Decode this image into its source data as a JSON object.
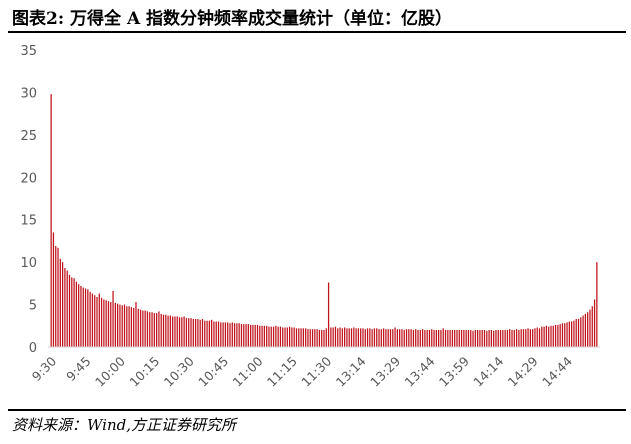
{
  "figure": {
    "title": "图表2:   万得全 A 指数分钟频率成交量统计（单位：亿股）",
    "source": "资料来源：Wind,方正证券研究所"
  },
  "colors": {
    "bar": "#c0121b",
    "axis": "#d0d0d0",
    "tick_text": "#595959"
  },
  "chart_data": {
    "type": "bar",
    "title": "",
    "xlabel": "",
    "ylabel": "",
    "ylim": [
      0,
      35
    ],
    "yticks": [
      0,
      5,
      10,
      15,
      20,
      25,
      30,
      35
    ],
    "grid": false,
    "legend": "none",
    "xtick_labels": [
      "9:30",
      "9:45",
      "10:00",
      "10:15",
      "10:30",
      "10:45",
      "11:00",
      "11:15",
      "11:30",
      "13:14",
      "13:29",
      "13:44",
      "13:59",
      "14:14",
      "14:29",
      "14:44"
    ],
    "xtick_category_index": [
      0,
      15,
      30,
      45,
      60,
      75,
      90,
      105,
      120,
      135,
      150,
      165,
      180,
      195,
      210,
      225
    ],
    "values": [
      29.8,
      13.5,
      11.9,
      11.7,
      10.4,
      10.0,
      9.3,
      9.0,
      8.5,
      8.2,
      8.1,
      7.7,
      7.4,
      7.2,
      7.0,
      6.9,
      6.8,
      6.5,
      6.3,
      6.1,
      5.9,
      6.3,
      5.8,
      5.6,
      5.5,
      5.4,
      5.3,
      6.6,
      5.2,
      5.1,
      5.0,
      4.9,
      5.0,
      4.8,
      4.8,
      4.7,
      4.6,
      5.3,
      4.5,
      4.4,
      4.3,
      4.3,
      4.2,
      4.1,
      4.1,
      4.0,
      4.0,
      4.2,
      3.9,
      3.8,
      3.8,
      3.7,
      3.7,
      3.6,
      3.6,
      3.6,
      3.5,
      3.5,
      3.6,
      3.4,
      3.4,
      3.4,
      3.3,
      3.3,
      3.3,
      3.2,
      3.3,
      3.1,
      3.1,
      3.1,
      3.2,
      3.0,
      3.0,
      3.0,
      2.9,
      2.9,
      2.9,
      2.9,
      2.8,
      2.9,
      2.8,
      2.8,
      2.8,
      2.7,
      2.7,
      2.7,
      2.7,
      2.6,
      2.6,
      2.6,
      2.6,
      2.5,
      2.5,
      2.5,
      2.5,
      2.4,
      2.4,
      2.4,
      2.5,
      2.4,
      2.4,
      2.3,
      2.3,
      2.3,
      2.4,
      2.3,
      2.3,
      2.2,
      2.2,
      2.2,
      2.2,
      2.2,
      2.1,
      2.1,
      2.1,
      2.1,
      2.1,
      2.0,
      2.0,
      2.0,
      2.2,
      7.6,
      2.3,
      2.3,
      2.4,
      2.2,
      2.3,
      2.2,
      2.3,
      2.2,
      2.2,
      2.2,
      2.3,
      2.2,
      2.2,
      2.2,
      2.2,
      2.1,
      2.2,
      2.2,
      2.1,
      2.2,
      2.2,
      2.1,
      2.1,
      2.2,
      2.1,
      2.1,
      2.1,
      2.1,
      2.3,
      2.1,
      2.1,
      2.1,
      2.0,
      2.1,
      2.1,
      2.1,
      2.0,
      2.1,
      2.0,
      2.0,
      2.1,
      2.0,
      2.0,
      2.0,
      2.1,
      2.0,
      2.0,
      2.0,
      2.0,
      2.2,
      2.0,
      2.0,
      2.0,
      2.0,
      2.0,
      2.0,
      2.0,
      2.0,
      2.0,
      2.0,
      2.0,
      2.0,
      1.9,
      2.0,
      2.0,
      2.0,
      2.0,
      2.0,
      1.9,
      2.0,
      2.0,
      1.9,
      2.0,
      2.0,
      2.0,
      2.0,
      2.0,
      2.0,
      2.1,
      2.0,
      2.0,
      2.1,
      2.0,
      2.1,
      2.1,
      2.1,
      2.2,
      2.1,
      2.1,
      2.2,
      2.3,
      2.2,
      2.4,
      2.4,
      2.5,
      2.4,
      2.5,
      2.5,
      2.6,
      2.6,
      2.7,
      2.8,
      2.8,
      2.9,
      3.0,
      3.0,
      3.1,
      3.3,
      3.3,
      3.5,
      3.7,
      3.9,
      4.1,
      4.4,
      4.8,
      5.6,
      10.0
    ]
  }
}
